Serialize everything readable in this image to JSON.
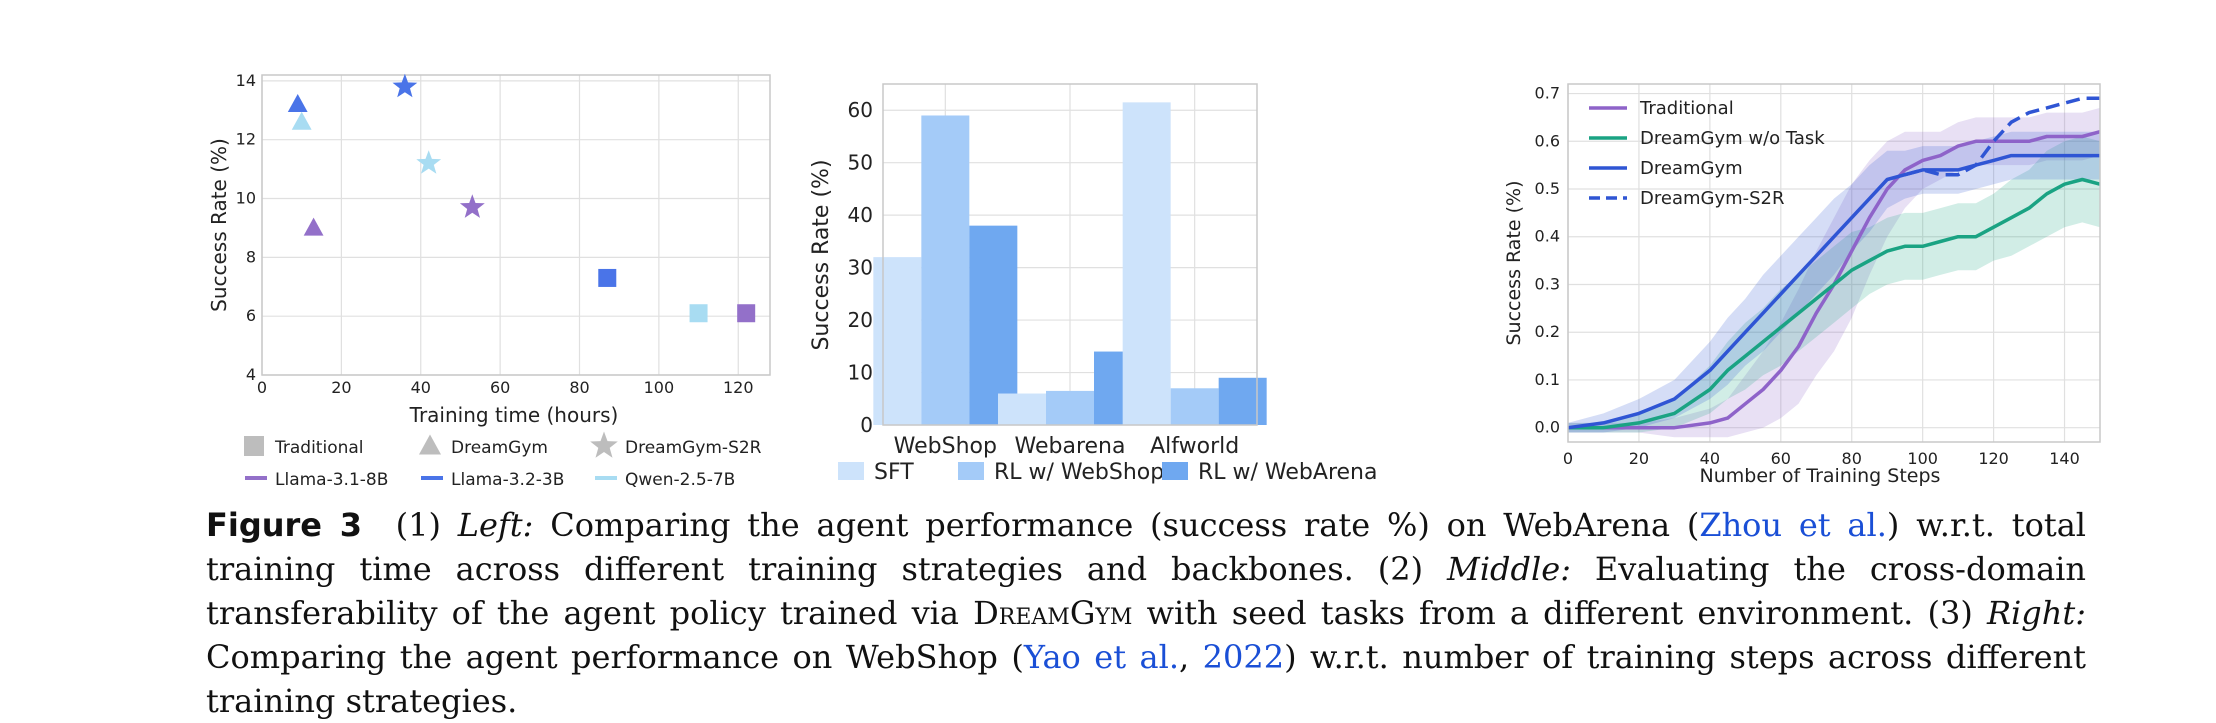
{
  "chart_data": [
    {
      "type": "scatter",
      "xlabel": "Training time (hours)",
      "ylabel": "Success Rate (%)",
      "xlim": [
        0,
        128
      ],
      "ylim": [
        4,
        14.2
      ],
      "xticks": [
        0,
        20,
        40,
        60,
        80,
        100,
        120
      ],
      "yticks": [
        4,
        6,
        8,
        10,
        12,
        14
      ],
      "grid": true,
      "legend_strategies": [
        {
          "label": "Traditional",
          "marker": "square"
        },
        {
          "label": "DreamGym",
          "marker": "triangle"
        },
        {
          "label": "DreamGym-S2R",
          "marker": "star"
        }
      ],
      "legend_models": [
        {
          "label": "Llama-3.1-8B",
          "color": "#9370c9"
        },
        {
          "label": "Llama-3.2-3B",
          "color": "#4a74e8"
        },
        {
          "label": "Qwen-2.5-7B",
          "color": "#a8dcf2"
        }
      ],
      "points": [
        {
          "strategy": "DreamGym",
          "model": "Llama-3.2-3B",
          "x": 9,
          "y": 13.2
        },
        {
          "strategy": "DreamGym",
          "model": "Qwen-2.5-7B",
          "x": 10,
          "y": 12.6
        },
        {
          "strategy": "DreamGym",
          "model": "Llama-3.1-8B",
          "x": 13,
          "y": 9.0
        },
        {
          "strategy": "DreamGym-S2R",
          "model": "Llama-3.2-3B",
          "x": 36,
          "y": 13.8
        },
        {
          "strategy": "DreamGym-S2R",
          "model": "Qwen-2.5-7B",
          "x": 42,
          "y": 11.2
        },
        {
          "strategy": "DreamGym-S2R",
          "model": "Llama-3.1-8B",
          "x": 53,
          "y": 9.7
        },
        {
          "strategy": "Traditional",
          "model": "Llama-3.2-3B",
          "x": 87,
          "y": 7.3
        },
        {
          "strategy": "Traditional",
          "model": "Qwen-2.5-7B",
          "x": 110,
          "y": 6.1
        },
        {
          "strategy": "Traditional",
          "model": "Llama-3.1-8B",
          "x": 122,
          "y": 6.1
        }
      ]
    },
    {
      "type": "bar",
      "ylabel": "Success Rate (%)",
      "categories": [
        "WebShop",
        "Webarena",
        "Alfworld"
      ],
      "ylim": [
        0,
        65
      ],
      "yticks": [
        0,
        10,
        20,
        30,
        40,
        50,
        60
      ],
      "grid": true,
      "series": [
        {
          "name": "SFT",
          "color": "#cde3fb",
          "values": [
            32,
            6,
            61.5
          ]
        },
        {
          "name": "RL w/ WebShop",
          "color": "#a4cbf8",
          "values": [
            59,
            6.5,
            7
          ]
        },
        {
          "name": "RL w/ WebArena",
          "color": "#6fa8f0",
          "values": [
            38,
            14,
            9
          ]
        }
      ]
    },
    {
      "type": "line",
      "xlabel": "Number of Training Steps",
      "ylabel": "Success Rate (%)",
      "xlim": [
        0,
        150
      ],
      "ylim": [
        -0.03,
        0.72
      ],
      "xticks": [
        0,
        20,
        40,
        60,
        80,
        100,
        120,
        140
      ],
      "yticks": [
        0.0,
        0.1,
        0.2,
        0.3,
        0.4,
        0.5,
        0.6,
        0.7
      ],
      "ytick_labels": [
        "0.0",
        "0.1",
        "0.2",
        "0.3",
        "0.4",
        "0.5",
        "0.6",
        "0.7"
      ],
      "grid": true,
      "x": [
        0,
        10,
        20,
        30,
        40,
        45,
        50,
        55,
        60,
        65,
        70,
        75,
        80,
        85,
        90,
        95,
        100,
        105,
        110,
        115,
        120,
        125,
        130,
        135,
        140,
        145,
        150
      ],
      "series": [
        {
          "name": "Traditional",
          "color": "#8e63c9",
          "dash": false,
          "values": [
            0.0,
            0.0,
            0.0,
            0.0,
            0.01,
            0.02,
            0.05,
            0.08,
            0.12,
            0.17,
            0.24,
            0.3,
            0.37,
            0.44,
            0.5,
            0.54,
            0.56,
            0.57,
            0.59,
            0.6,
            0.6,
            0.6,
            0.6,
            0.61,
            0.61,
            0.61,
            0.62
          ],
          "band": [
            0.01,
            0.01,
            0.01,
            0.02,
            0.03,
            0.04,
            0.06,
            0.08,
            0.1,
            0.12,
            0.13,
            0.14,
            0.14,
            0.12,
            0.1,
            0.08,
            0.06,
            0.05,
            0.05,
            0.05,
            0.05,
            0.05,
            0.05,
            0.05,
            0.05,
            0.05,
            0.05
          ]
        },
        {
          "name": "DreamGym w/o Task",
          "color": "#1aa383",
          "dash": false,
          "values": [
            0.0,
            0.0,
            0.01,
            0.03,
            0.08,
            0.12,
            0.15,
            0.18,
            0.21,
            0.24,
            0.27,
            0.3,
            0.33,
            0.35,
            0.37,
            0.38,
            0.38,
            0.39,
            0.4,
            0.4,
            0.42,
            0.44,
            0.46,
            0.49,
            0.51,
            0.52,
            0.51
          ],
          "band": [
            0.01,
            0.01,
            0.02,
            0.03,
            0.05,
            0.06,
            0.07,
            0.07,
            0.08,
            0.08,
            0.08,
            0.08,
            0.08,
            0.07,
            0.07,
            0.07,
            0.07,
            0.07,
            0.07,
            0.07,
            0.07,
            0.08,
            0.08,
            0.09,
            0.09,
            0.09,
            0.09
          ]
        },
        {
          "name": "DreamGym",
          "color": "#2f55d4",
          "dash": false,
          "values": [
            0.0,
            0.01,
            0.03,
            0.06,
            0.12,
            0.16,
            0.2,
            0.24,
            0.28,
            0.32,
            0.36,
            0.4,
            0.44,
            0.48,
            0.52,
            0.53,
            0.54,
            0.54,
            0.54,
            0.55,
            0.56,
            0.57,
            0.57,
            0.57,
            0.57,
            0.57,
            0.57
          ],
          "band": [
            0.01,
            0.02,
            0.03,
            0.04,
            0.06,
            0.07,
            0.07,
            0.08,
            0.08,
            0.08,
            0.08,
            0.08,
            0.07,
            0.07,
            0.06,
            0.05,
            0.05,
            0.05,
            0.05,
            0.05,
            0.05,
            0.05,
            0.05,
            0.05,
            0.05,
            0.05,
            0.05
          ]
        },
        {
          "name": "DreamGym-S2R",
          "color": "#2f55d4",
          "dash": true,
          "x": [
            95,
            100,
            105,
            110,
            115,
            120,
            125,
            130,
            135,
            140,
            145,
            150
          ],
          "values": [
            0.53,
            0.54,
            0.53,
            0.53,
            0.55,
            0.6,
            0.64,
            0.66,
            0.67,
            0.68,
            0.69,
            0.69
          ]
        }
      ]
    }
  ],
  "caption": {
    "label": "Figure 3",
    "p1": "(1) ",
    "left": "Left:",
    "p2": " Comparing the agent performance (success rate %) on WebArena (",
    "cite1": "Zhou et al.",
    "p3": ") w.r.t. total training time across different training strategies and backbones. (2) ",
    "middle": "Middle:",
    "p4": " Evaluating the cross-domain transferability of the agent policy trained via ",
    "dreamgym": "DreamGym",
    "p5": " with seed tasks from a different environment. (3) ",
    "right": "Right:",
    "p6": " Comparing the agent performance on WebShop (",
    "cite2": "Yao et al.",
    "p7": ", ",
    "cite3": "2022",
    "p8": ") w.r.t. number of training steps across different training strategies."
  }
}
